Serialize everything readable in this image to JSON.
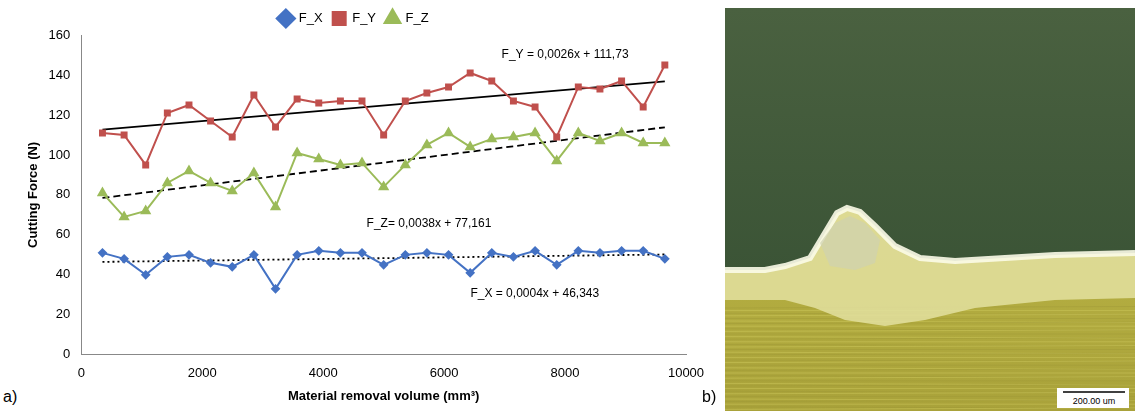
{
  "chart_data": {
    "type": "line",
    "x": [
      350,
      708,
      1065,
      1423,
      1781,
      2138,
      2496,
      2854,
      3212,
      3569,
      3927,
      4285,
      4642,
      5000,
      5358,
      5715,
      6073,
      6431,
      6788,
      7146,
      7504,
      7862,
      8219,
      8577,
      8935,
      9292,
      9650
    ],
    "xlim": [
      0,
      10000
    ],
    "xticks": [
      0,
      2000,
      4000,
      6000,
      8000,
      10000
    ],
    "ylim": [
      0,
      160
    ],
    "yticks": [
      0,
      20,
      40,
      60,
      80,
      100,
      120,
      140,
      160
    ],
    "x_label": "Material removal volume (mm³)",
    "y_label": "Cutting Force (N)",
    "grid": false,
    "legend": "top",
    "series": [
      {
        "name": "F_X",
        "color": "#4472c4",
        "marker": "diamond",
        "values": [
          51,
          48,
          40,
          49,
          50,
          46,
          44,
          50,
          33,
          50,
          52,
          51,
          51,
          45,
          50,
          51,
          50,
          41,
          51,
          49,
          52,
          45,
          52,
          51,
          52,
          52,
          48
        ],
        "trend": {
          "slope": 0.0004,
          "intercept": 46.343,
          "label": "F_X = 0,0004x + 46,343",
          "line_style": "dotted"
        }
      },
      {
        "name": "F_Y",
        "color": "#c0504d",
        "marker": "square",
        "values": [
          111,
          110,
          95,
          121,
          125,
          117,
          109,
          130,
          114,
          128,
          126,
          127,
          127,
          110,
          127,
          131,
          134,
          141,
          137,
          127,
          124,
          109,
          134,
          133,
          137,
          124,
          145
        ],
        "trend": {
          "slope": 0.0026,
          "intercept": 111.73,
          "label": "F_Y = 0,0026x + 111,73",
          "line_style": "solid"
        }
      },
      {
        "name": "F_Z",
        "color": "#9bbb59",
        "marker": "triangle",
        "values": [
          81,
          69,
          72,
          86,
          92,
          86,
          82,
          91,
          74,
          101,
          98,
          95,
          96,
          84,
          95,
          105,
          111,
          104,
          108,
          109,
          111,
          97,
          111,
          107,
          111,
          106,
          106
        ],
        "trend": {
          "slope": 0.0038,
          "intercept": 77.161,
          "label": "F_Z= 0,0038x + 77,161",
          "line_style": "dashed"
        }
      }
    ]
  },
  "panel_labels": [
    "a)",
    "b)"
  ],
  "image": {
    "scale_bar_label": "200.00 um"
  }
}
